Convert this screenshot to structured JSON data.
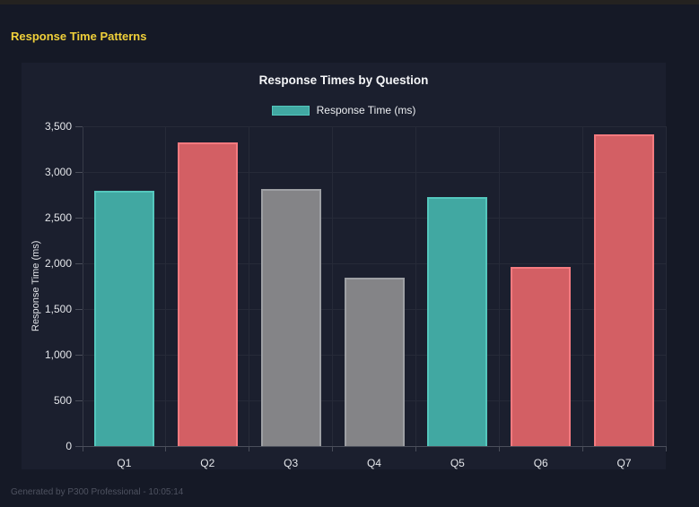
{
  "page": {
    "title": "Response Time Patterns",
    "footer": "Generated by P300 Professional - 10:05:14"
  },
  "chart_data": {
    "type": "bar",
    "title": "Response Times by Question",
    "legend": [
      {
        "label": "Response Time (ms)",
        "fill": "#41a8a2",
        "border": "#54c7bd"
      }
    ],
    "legend_position": "top",
    "categories": [
      "Q1",
      "Q2",
      "Q3",
      "Q4",
      "Q5",
      "Q6",
      "Q7"
    ],
    "values": [
      2790,
      3320,
      2810,
      1840,
      2730,
      1960,
      3410
    ],
    "bar_fill": [
      "#41a8a2",
      "#d35f64",
      "#848487",
      "#848487",
      "#41a8a2",
      "#d35f64",
      "#d35f64"
    ],
    "bar_border": [
      "#54c7bd",
      "#f47a7f",
      "#9ea0a4",
      "#9ea0a4",
      "#54c7bd",
      "#f47a7f",
      "#f47a7f"
    ],
    "xlabel": "",
    "ylabel": "Response Time (ms)",
    "ylim": [
      0,
      3500
    ],
    "grid": true,
    "ytick_values": [
      0,
      500,
      1000,
      1500,
      2000,
      2500,
      3000,
      3500
    ],
    "ytick_labels": [
      "0",
      "500",
      "1,000",
      "1,500",
      "2,000",
      "2,500",
      "3,000",
      "3,500"
    ],
    "colors": {
      "page_bg": "#151926",
      "panel_bg": "#1b1f2e",
      "grid": "#262a38",
      "axis": "#4a4e5a",
      "tick_text": "#e4e6ea",
      "title_text": "#f4f5f7",
      "accent_yellow": "#f0d03a",
      "footer_text": "#4e5260"
    }
  }
}
